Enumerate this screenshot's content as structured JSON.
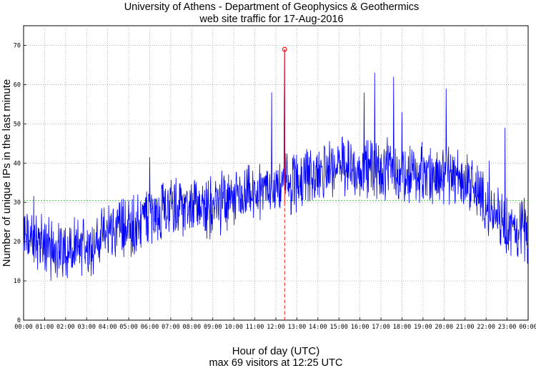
{
  "chart_data": {
    "type": "line",
    "title": "University of Athens - Department of Geophysics & Geothermics",
    "subtitle": "web site traffic for 17-Aug-2016",
    "xlabel": "Hour of day (UTC)",
    "ylabel": "Number of unique IPs in the last minute",
    "footer": "max 69 visitors at 12:25 UTC",
    "xlim": [
      0,
      24
    ],
    "ylim": [
      0,
      75
    ],
    "grid": true,
    "x_tick_labels": [
      "00:00",
      "01:00",
      "02:00",
      "03:00",
      "04:00",
      "05:00",
      "06:00",
      "07:00",
      "08:00",
      "09:00",
      "10:00",
      "11:00",
      "12:00",
      "13:00",
      "14:00",
      "15:00",
      "16:00",
      "17:00",
      "18:00",
      "19:00",
      "20:00",
      "21:00",
      "22:00",
      "23:00",
      "00:00"
    ],
    "y_ticks": [
      0,
      10,
      20,
      30,
      40,
      50,
      60,
      70
    ],
    "average": 30.5,
    "max": {
      "x": 12.4167,
      "value": 69
    },
    "series": [
      {
        "color": "#0000ff",
        "x": [
          0,
          0.5,
          1,
          1.5,
          2,
          2.5,
          3,
          3.5,
          4,
          4.5,
          5,
          5.5,
          6,
          6.5,
          7,
          7.5,
          8,
          8.5,
          9,
          9.5,
          10,
          10.5,
          11,
          11.5,
          12,
          12.5,
          13,
          13.5,
          14,
          14.5,
          15,
          15.5,
          16,
          16.5,
          17,
          17.5,
          18,
          18.5,
          19,
          19.5,
          20,
          20.5,
          21,
          21.5,
          22,
          22.5,
          23,
          23.5,
          24
        ],
        "values": [
          21,
          20,
          19,
          18,
          18,
          18,
          19,
          20,
          22,
          24,
          24,
          25,
          27,
          28,
          29,
          29,
          29,
          29,
          29,
          30,
          30,
          31,
          32,
          33,
          34,
          35,
          35,
          36,
          37,
          39,
          40,
          39,
          38,
          39,
          38,
          38,
          37,
          37,
          36,
          37,
          38,
          37,
          36,
          33,
          29,
          26,
          24,
          23,
          22
        ]
      }
    ],
    "peaks": [
      [
        12.4167,
        69
      ],
      [
        16.7,
        63
      ],
      [
        17.6,
        62
      ],
      [
        20.1,
        59
      ],
      [
        11.8,
        58
      ],
      [
        16.2,
        58
      ],
      [
        18.0,
        53
      ],
      [
        12.4,
        56
      ],
      [
        22.9,
        49
      ]
    ]
  }
}
